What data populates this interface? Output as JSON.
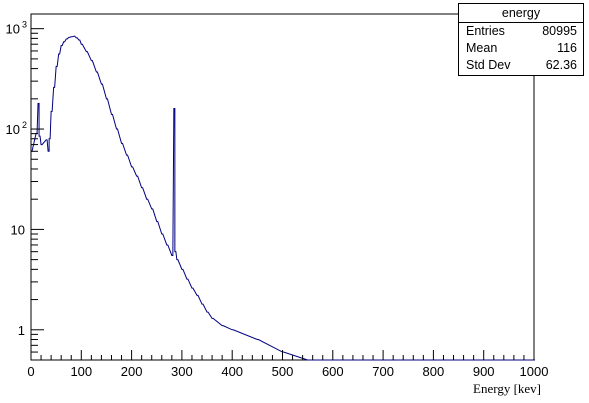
{
  "chart_data": {
    "type": "histogram",
    "title": "",
    "xlabel": "Energy [kev]",
    "ylabel": "",
    "xlim": [
      0,
      1000
    ],
    "ylim": [
      0.5,
      1400
    ],
    "yscale": "log",
    "grid": false,
    "line_color": "#000080",
    "x_ticks": [
      "0",
      "100",
      "200",
      "300",
      "400",
      "500",
      "600",
      "700",
      "800",
      "900",
      "1000"
    ],
    "y_ticks": [
      {
        "value": 1,
        "label": "1"
      },
      {
        "value": 10,
        "label": "10"
      },
      {
        "value": 100,
        "label": "10",
        "exp": "2"
      },
      {
        "value": 1000,
        "label": "10",
        "exp": "3"
      }
    ],
    "series": [
      {
        "bin_width": 2,
        "bins": [
          [
            0,
            60
          ],
          [
            10,
            90
          ],
          [
            14,
            180
          ],
          [
            16,
            85
          ],
          [
            20,
            70
          ],
          [
            30,
            78
          ],
          [
            34,
            60
          ],
          [
            36,
            80
          ],
          [
            40,
            150
          ],
          [
            45,
            260
          ],
          [
            50,
            420
          ],
          [
            55,
            560
          ],
          [
            60,
            680
          ],
          [
            65,
            740
          ],
          [
            70,
            790
          ],
          [
            75,
            820
          ],
          [
            80,
            830
          ],
          [
            85,
            840
          ],
          [
            90,
            810
          ],
          [
            95,
            770
          ],
          [
            100,
            700
          ],
          [
            110,
            590
          ],
          [
            120,
            480
          ],
          [
            130,
            370
          ],
          [
            140,
            280
          ],
          [
            150,
            200
          ],
          [
            160,
            140
          ],
          [
            170,
            100
          ],
          [
            180,
            72
          ],
          [
            190,
            55
          ],
          [
            200,
            42
          ],
          [
            210,
            34
          ],
          [
            220,
            26
          ],
          [
            230,
            20
          ],
          [
            240,
            16
          ],
          [
            250,
            12
          ],
          [
            260,
            9
          ],
          [
            270,
            7
          ],
          [
            280,
            5.5
          ],
          [
            284,
            160
          ],
          [
            286,
            6
          ],
          [
            290,
            5
          ],
          [
            300,
            4
          ],
          [
            310,
            3.2
          ],
          [
            320,
            2.6
          ],
          [
            330,
            2.2
          ],
          [
            340,
            1.8
          ],
          [
            350,
            1.5
          ],
          [
            360,
            1.3
          ],
          [
            380,
            1.1
          ],
          [
            400,
            1.0
          ],
          [
            450,
            0.8
          ],
          [
            500,
            0.6
          ],
          [
            550,
            0.4
          ],
          [
            600,
            0.3
          ],
          [
            650,
            0.2
          ],
          [
            700,
            0.1
          ],
          [
            800,
            0.05
          ],
          [
            1000,
            0.01
          ]
        ]
      }
    ],
    "stats": {
      "name": "energy",
      "rows": [
        {
          "label": "Entries",
          "value": "80995"
        },
        {
          "label": "Mean",
          "value": "116"
        },
        {
          "label": "Std Dev",
          "value": "62.36"
        }
      ]
    }
  }
}
